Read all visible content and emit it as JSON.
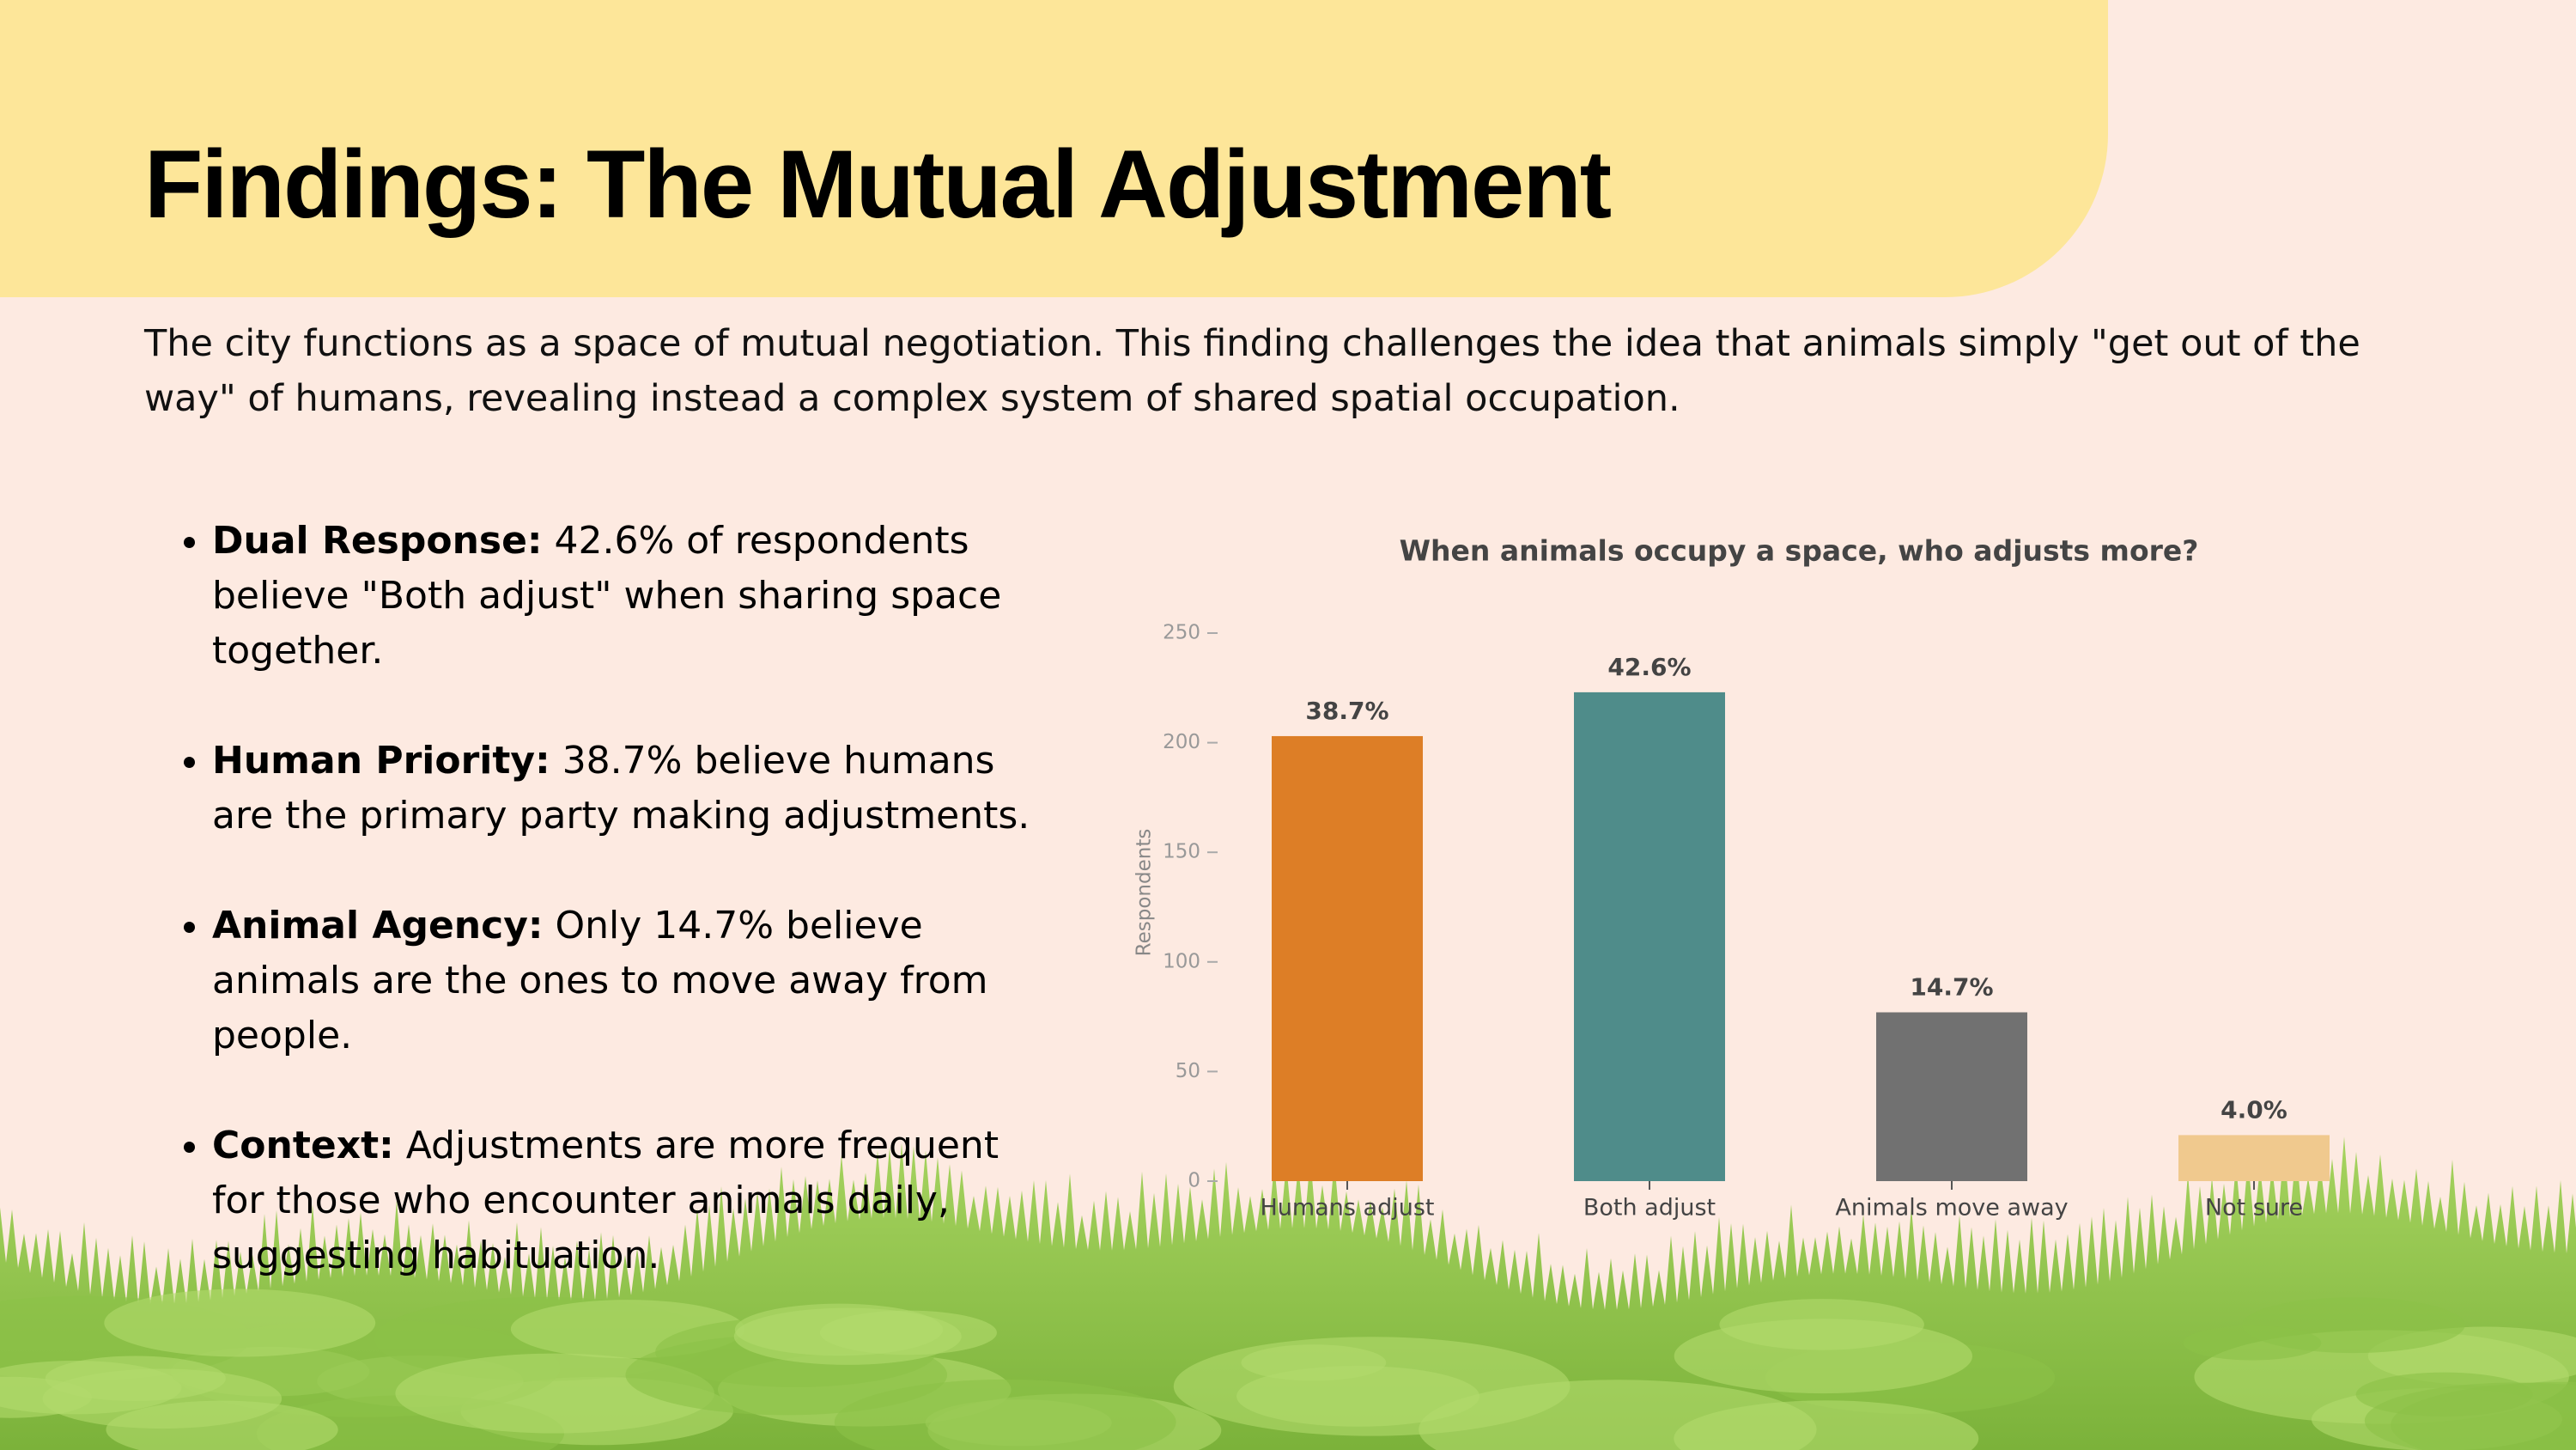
{
  "title": "Findings: The Mutual Adjustment",
  "intro": "The city functions as a space of mutual negotiation. This finding challenges the idea that animals simply \"get out of the way\" of humans, revealing instead a complex system of shared spatial occupation.",
  "bullets": [
    {
      "label": "Dual Response:",
      "text": "42.6% of respondents believe \"Both adjust\" when sharing space together."
    },
    {
      "label": "Human Priority:",
      "text": "38.7% believe humans are the primary party making adjustments."
    },
    {
      "label": "Animal Agency:",
      "text": "Only 14.7% believe animals are the ones to move away from people."
    },
    {
      "label": "Context:",
      "text": "Adjustments are more frequent for those who encounter animals daily, suggesting habituation."
    }
  ],
  "chart_data": {
    "type": "bar",
    "title": "When animals occupy a space, who adjusts more?",
    "ylabel": "Respondents",
    "categories": [
      "Humans adjust",
      "Both adjust",
      "Animals move away",
      "Not sure"
    ],
    "values": [
      203,
      223,
      77,
      21
    ],
    "value_labels": [
      "38.7%",
      "42.6%",
      "14.7%",
      "4.0%"
    ],
    "colors": [
      "#dd7e26",
      "#4f8c8a",
      "#717171",
      "#f0c98e"
    ],
    "ylim": [
      0,
      250
    ],
    "yticks": [
      0,
      50,
      100,
      150,
      200,
      250
    ]
  }
}
